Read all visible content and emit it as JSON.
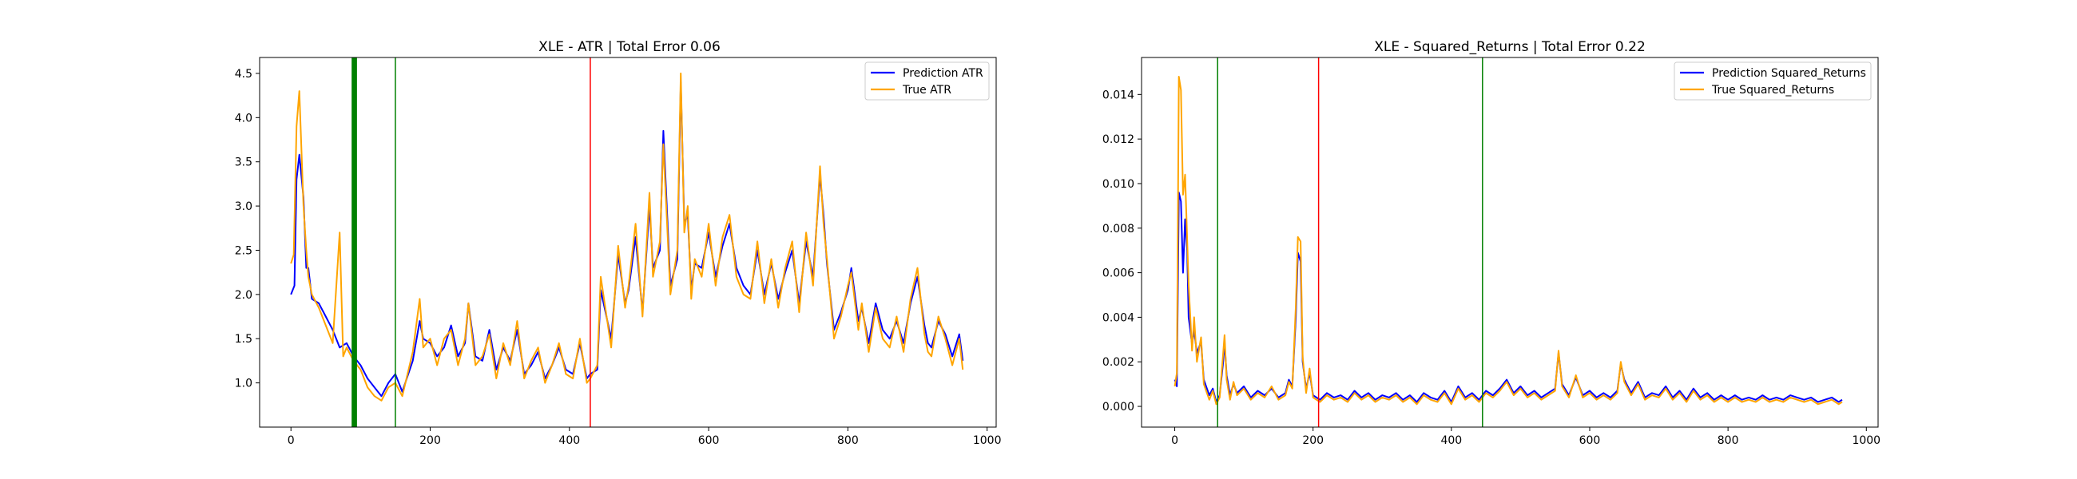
{
  "chart_data": [
    {
      "type": "line",
      "title": "XLE - ATR | Total Error 0.06",
      "xlabel": "",
      "ylabel": "",
      "xlim": [
        -45,
        1013
      ],
      "ylim": [
        0.5,
        4.68
      ],
      "xticks": [
        0,
        200,
        400,
        600,
        800,
        1000
      ],
      "xtick_labels": [
        "0",
        "200",
        "400",
        "600",
        "800",
        "1000"
      ],
      "yticks": [
        1.0,
        1.5,
        2.0,
        2.5,
        3.0,
        3.5,
        4.0,
        4.5
      ],
      "ytick_labels": [
        "1.0",
        "1.5",
        "2.0",
        "2.5",
        "3.0",
        "3.5",
        "4.0",
        "4.5"
      ],
      "grid": false,
      "legend_position": "top-right",
      "series": [
        {
          "name": "Prediction ATR",
          "color": "#0000ff",
          "x": [
            0,
            5,
            8,
            12,
            18,
            22,
            25,
            30,
            40,
            50,
            60,
            70,
            80,
            90,
            100,
            110,
            120,
            130,
            140,
            150,
            160,
            175,
            185,
            190,
            200,
            210,
            220,
            230,
            240,
            250,
            255,
            265,
            275,
            285,
            295,
            305,
            315,
            325,
            335,
            345,
            355,
            365,
            375,
            385,
            395,
            405,
            415,
            425,
            430,
            440,
            445,
            460,
            470,
            480,
            485,
            495,
            505,
            515,
            520,
            530,
            535,
            545,
            555,
            560,
            565,
            570,
            575,
            580,
            590,
            600,
            610,
            620,
            630,
            640,
            650,
            660,
            670,
            680,
            690,
            700,
            710,
            720,
            730,
            740,
            750,
            760,
            765,
            770,
            780,
            790,
            800,
            805,
            815,
            820,
            830,
            840,
            850,
            860,
            870,
            880,
            890,
            900,
            910,
            915,
            920,
            930,
            940,
            950,
            960,
            965
          ],
          "values": [
            2.0,
            2.1,
            3.3,
            3.58,
            3.1,
            2.3,
            2.3,
            1.95,
            1.9,
            1.75,
            1.6,
            1.4,
            1.45,
            1.3,
            1.2,
            1.05,
            0.95,
            0.85,
            1.0,
            1.1,
            0.9,
            1.25,
            1.7,
            1.5,
            1.45,
            1.3,
            1.4,
            1.65,
            1.3,
            1.45,
            1.9,
            1.3,
            1.25,
            1.6,
            1.15,
            1.4,
            1.25,
            1.6,
            1.1,
            1.2,
            1.35,
            1.05,
            1.2,
            1.4,
            1.15,
            1.1,
            1.45,
            1.05,
            1.1,
            1.15,
            2.05,
            1.5,
            2.45,
            1.9,
            2.05,
            2.65,
            1.8,
            3.0,
            2.3,
            2.5,
            3.85,
            2.1,
            2.4,
            4.4,
            2.8,
            2.9,
            2.05,
            2.35,
            2.3,
            2.7,
            2.2,
            2.55,
            2.8,
            2.3,
            2.1,
            2.0,
            2.5,
            2.0,
            2.35,
            1.95,
            2.25,
            2.5,
            1.9,
            2.6,
            2.2,
            3.35,
            2.9,
            2.35,
            1.6,
            1.8,
            2.05,
            2.3,
            1.7,
            1.85,
            1.45,
            1.9,
            1.6,
            1.5,
            1.7,
            1.45,
            1.9,
            2.2,
            1.65,
            1.45,
            1.4,
            1.7,
            1.55,
            1.3,
            1.55,
            1.25
          ]
        },
        {
          "name": "True ATR",
          "color": "#ffa500",
          "x": [
            0,
            4,
            8,
            12,
            18,
            22,
            25,
            30,
            40,
            50,
            60,
            70,
            75,
            80,
            90,
            100,
            110,
            120,
            130,
            140,
            150,
            160,
            175,
            185,
            190,
            200,
            210,
            220,
            230,
            240,
            250,
            255,
            265,
            275,
            285,
            295,
            305,
            315,
            325,
            335,
            345,
            355,
            365,
            375,
            385,
            395,
            405,
            415,
            425,
            430,
            440,
            445,
            460,
            470,
            480,
            485,
            495,
            505,
            515,
            520,
            530,
            535,
            545,
            555,
            560,
            565,
            570,
            575,
            580,
            590,
            600,
            610,
            620,
            630,
            640,
            650,
            660,
            670,
            680,
            690,
            700,
            710,
            720,
            730,
            740,
            750,
            760,
            765,
            770,
            780,
            790,
            800,
            805,
            815,
            820,
            830,
            840,
            850,
            860,
            870,
            880,
            890,
            900,
            910,
            915,
            920,
            930,
            940,
            950,
            960,
            965
          ],
          "values": [
            2.35,
            2.45,
            3.9,
            4.3,
            3.0,
            2.5,
            2.2,
            2.0,
            1.85,
            1.65,
            1.45,
            2.7,
            1.3,
            1.4,
            1.25,
            1.15,
            0.95,
            0.85,
            0.8,
            0.95,
            1.0,
            0.85,
            1.35,
            1.95,
            1.4,
            1.5,
            1.2,
            1.5,
            1.6,
            1.2,
            1.5,
            1.9,
            1.2,
            1.3,
            1.55,
            1.05,
            1.45,
            1.2,
            1.7,
            1.05,
            1.25,
            1.4,
            1.0,
            1.2,
            1.45,
            1.1,
            1.05,
            1.5,
            1.0,
            1.05,
            1.2,
            2.2,
            1.4,
            2.55,
            1.85,
            2.1,
            2.8,
            1.75,
            3.15,
            2.2,
            2.6,
            3.7,
            2.0,
            2.5,
            4.5,
            2.7,
            3.0,
            1.95,
            2.4,
            2.2,
            2.8,
            2.1,
            2.65,
            2.9,
            2.2,
            2.0,
            1.95,
            2.6,
            1.9,
            2.4,
            1.85,
            2.3,
            2.6,
            1.8,
            2.7,
            2.1,
            3.45,
            2.8,
            2.4,
            1.5,
            1.75,
            2.1,
            2.25,
            1.6,
            1.9,
            1.35,
            1.85,
            1.5,
            1.4,
            1.75,
            1.35,
            1.95,
            2.3,
            1.55,
            1.35,
            1.3,
            1.75,
            1.5,
            1.2,
            1.5,
            1.15
          ]
        }
      ],
      "vlines": [
        {
          "x": 88,
          "color": "#008000"
        },
        {
          "x": 89,
          "color": "#008000"
        },
        {
          "x": 90,
          "color": "#008000"
        },
        {
          "x": 91,
          "color": "#008000"
        },
        {
          "x": 92,
          "color": "#008000"
        },
        {
          "x": 93,
          "color": "#008000"
        },
        {
          "x": 94,
          "color": "#008000"
        },
        {
          "x": 150,
          "color": "#008000"
        },
        {
          "x": 430,
          "color": "#ff0000"
        }
      ]
    },
    {
      "type": "line",
      "title": "XLE - Squared_Returns | Total Error 0.22",
      "xlabel": "",
      "ylabel": "",
      "xlim": [
        -48,
        1017
      ],
      "ylim": [
        -0.00093,
        0.01566
      ],
      "xticks": [
        0,
        200,
        400,
        600,
        800,
        1000
      ],
      "xtick_labels": [
        "0",
        "200",
        "400",
        "600",
        "800",
        "1000"
      ],
      "yticks": [
        0.0,
        0.002,
        0.004,
        0.006,
        0.008,
        0.01,
        0.012,
        0.014
      ],
      "ytick_labels": [
        "0.000",
        "0.002",
        "0.004",
        "0.006",
        "0.008",
        "0.010",
        "0.012",
        "0.014"
      ],
      "grid": false,
      "legend_position": "top-right",
      "series": [
        {
          "name": "Prediction Squared_Returns",
          "color": "#0000ff",
          "x": [
            0,
            3,
            6,
            9,
            12,
            15,
            18,
            20,
            25,
            28,
            32,
            38,
            42,
            50,
            55,
            60,
            65,
            70,
            72,
            75,
            80,
            85,
            90,
            100,
            110,
            120,
            130,
            140,
            150,
            160,
            165,
            170,
            175,
            178,
            182,
            185,
            190,
            195,
            200,
            210,
            220,
            230,
            240,
            250,
            260,
            270,
            280,
            290,
            300,
            310,
            320,
            330,
            340,
            350,
            360,
            370,
            380,
            390,
            400,
            410,
            420,
            430,
            440,
            450,
            460,
            470,
            480,
            490,
            500,
            510,
            520,
            530,
            540,
            550,
            555,
            560,
            570,
            580,
            590,
            600,
            610,
            620,
            630,
            640,
            645,
            650,
            660,
            670,
            680,
            690,
            700,
            710,
            720,
            730,
            740,
            750,
            760,
            770,
            780,
            790,
            800,
            810,
            820,
            830,
            840,
            850,
            860,
            870,
            880,
            890,
            900,
            910,
            920,
            930,
            940,
            950,
            960,
            965
          ],
          "values": [
            0.0012,
            0.0009,
            0.0096,
            0.0092,
            0.006,
            0.0084,
            0.007,
            0.004,
            0.0028,
            0.0034,
            0.0024,
            0.0029,
            0.0012,
            0.0005,
            0.0008,
            0.0002,
            0.0005,
            0.002,
            0.0029,
            0.0014,
            0.0005,
            0.001,
            0.0006,
            0.0009,
            0.0004,
            0.0007,
            0.0005,
            0.0008,
            0.0004,
            0.0006,
            0.0012,
            0.0009,
            0.004,
            0.0069,
            0.0065,
            0.002,
            0.0008,
            0.0015,
            0.0005,
            0.0003,
            0.0006,
            0.0004,
            0.0005,
            0.0003,
            0.0007,
            0.0004,
            0.0006,
            0.0003,
            0.0005,
            0.0004,
            0.0006,
            0.0003,
            0.0005,
            0.0002,
            0.0006,
            0.0004,
            0.0003,
            0.0007,
            0.0002,
            0.0009,
            0.0004,
            0.0006,
            0.0003,
            0.0007,
            0.0005,
            0.0008,
            0.0012,
            0.0006,
            0.0009,
            0.0005,
            0.0007,
            0.0004,
            0.0006,
            0.0008,
            0.0024,
            0.001,
            0.0005,
            0.0013,
            0.0005,
            0.0007,
            0.0004,
            0.0006,
            0.0004,
            0.0007,
            0.0019,
            0.0012,
            0.0006,
            0.0011,
            0.0004,
            0.0006,
            0.0005,
            0.0009,
            0.0004,
            0.0007,
            0.0003,
            0.0008,
            0.0004,
            0.0006,
            0.0003,
            0.0005,
            0.0003,
            0.0005,
            0.0003,
            0.0004,
            0.0003,
            0.0005,
            0.0003,
            0.0004,
            0.0003,
            0.0005,
            0.0004,
            0.0003,
            0.0004,
            0.0002,
            0.0003,
            0.0004,
            0.0002,
            0.0003
          ]
        },
        {
          "name": "True Squared_Returns",
          "color": "#ffa500",
          "x": [
            0,
            3,
            6,
            9,
            12,
            15,
            18,
            20,
            25,
            28,
            32,
            38,
            42,
            50,
            55,
            60,
            65,
            70,
            72,
            75,
            80,
            85,
            90,
            100,
            110,
            120,
            130,
            140,
            150,
            160,
            165,
            170,
            175,
            178,
            182,
            185,
            190,
            195,
            200,
            210,
            220,
            230,
            240,
            250,
            260,
            270,
            280,
            290,
            300,
            310,
            320,
            330,
            340,
            350,
            360,
            370,
            380,
            390,
            400,
            410,
            420,
            430,
            440,
            450,
            460,
            470,
            480,
            490,
            500,
            510,
            520,
            530,
            540,
            550,
            555,
            560,
            570,
            580,
            590,
            600,
            610,
            620,
            630,
            640,
            645,
            650,
            660,
            670,
            680,
            690,
            700,
            710,
            720,
            730,
            740,
            750,
            760,
            770,
            780,
            790,
            800,
            810,
            820,
            830,
            840,
            850,
            860,
            870,
            880,
            890,
            900,
            910,
            920,
            930,
            940,
            950,
            960,
            965
          ],
          "values": [
            0.0009,
            0.0015,
            0.0148,
            0.0142,
            0.0095,
            0.0104,
            0.0075,
            0.0055,
            0.0025,
            0.004,
            0.002,
            0.0031,
            0.001,
            0.0003,
            0.0007,
            0.0001,
            0.0004,
            0.0024,
            0.0032,
            0.0012,
            0.0003,
            0.0011,
            0.0005,
            0.0008,
            0.0003,
            0.0006,
            0.0004,
            0.0009,
            0.0003,
            0.0005,
            0.0011,
            0.0008,
            0.0045,
            0.0076,
            0.0074,
            0.0022,
            0.0006,
            0.0017,
            0.0004,
            0.0002,
            0.0005,
            0.0003,
            0.0004,
            0.0002,
            0.0006,
            0.0003,
            0.0005,
            0.0002,
            0.0004,
            0.0003,
            0.0005,
            0.0002,
            0.0004,
            0.0001,
            0.0005,
            0.0003,
            0.0002,
            0.0006,
            0.0001,
            0.0008,
            0.0003,
            0.0005,
            0.0002,
            0.0006,
            0.0004,
            0.0007,
            0.0011,
            0.0005,
            0.0008,
            0.0004,
            0.0006,
            0.0003,
            0.0005,
            0.0007,
            0.0025,
            0.0009,
            0.0004,
            0.0014,
            0.0004,
            0.0006,
            0.0003,
            0.0005,
            0.0003,
            0.0006,
            0.002,
            0.0011,
            0.0005,
            0.001,
            0.0003,
            0.0005,
            0.0004,
            0.0008,
            0.0003,
            0.0006,
            0.0002,
            0.0007,
            0.0003,
            0.0005,
            0.0002,
            0.0004,
            0.0002,
            0.0004,
            0.0002,
            0.0003,
            0.0002,
            0.0004,
            0.0002,
            0.0003,
            0.0002,
            0.0004,
            0.0003,
            0.0002,
            0.0003,
            0.0001,
            0.0002,
            0.0003,
            0.0001,
            0.0002
          ]
        }
      ],
      "vlines": [
        {
          "x": 62,
          "color": "#008000"
        },
        {
          "x": 208,
          "color": "#ff0000"
        },
        {
          "x": 445,
          "color": "#008000"
        }
      ]
    }
  ]
}
